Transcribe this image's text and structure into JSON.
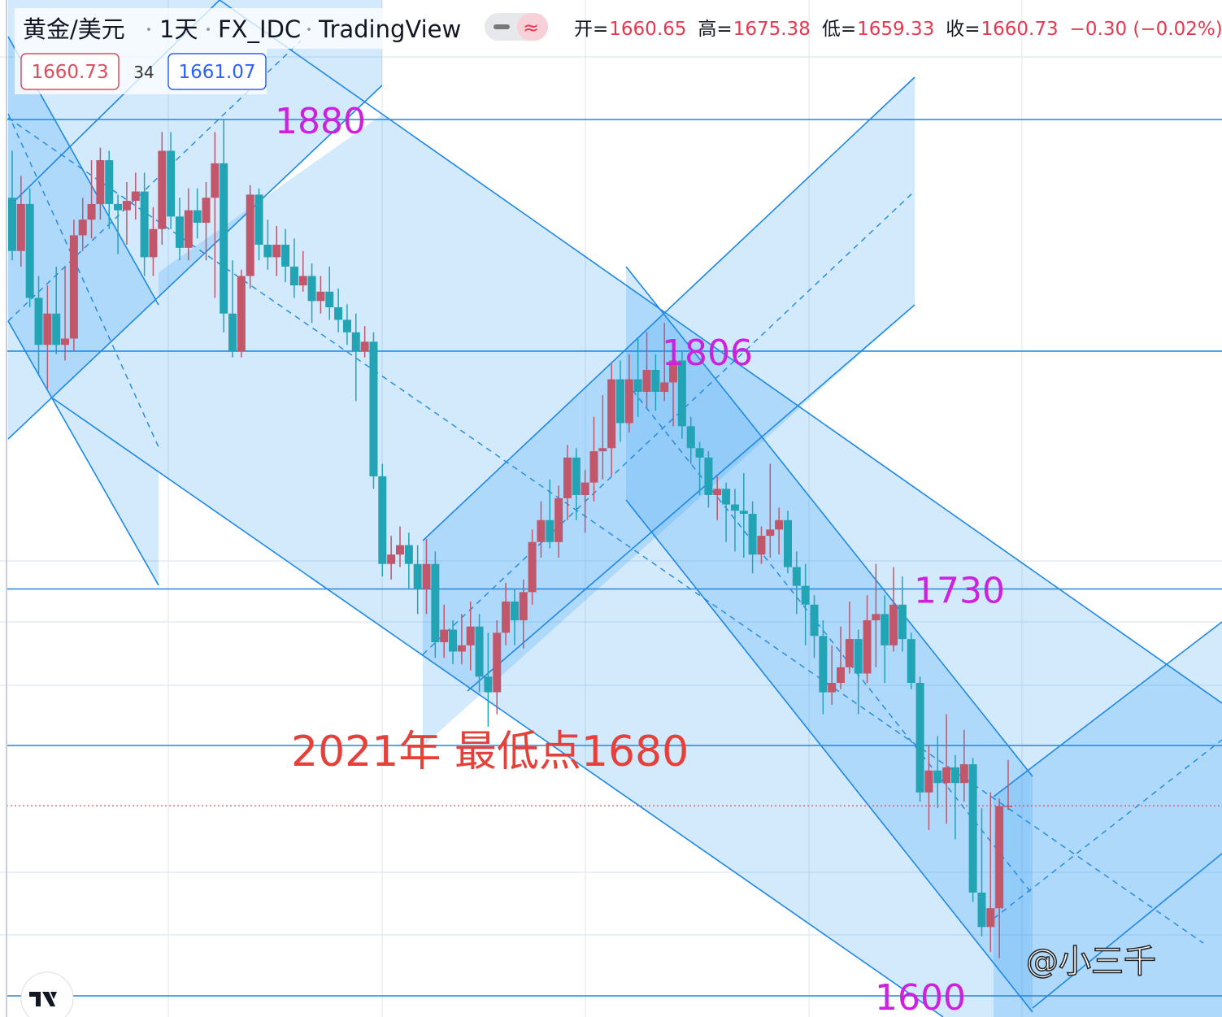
{
  "chart_data": {
    "type": "candlestick",
    "symbol": "黄金/美元",
    "interval": "1天",
    "exchange": "FX_IDC",
    "source": "TradingView",
    "ohlc_labels": [
      "开=",
      "高=",
      "低=",
      "收="
    ],
    "change": "−0.30 (−0.02%)",
    "bid": 1660.73,
    "spread": 34,
    "ask": 1661.07,
    "ylim": [
      1593.25,
      1918.18
    ],
    "levels": [
      1880,
      1806,
      1730,
      1680,
      1600
    ],
    "annotation": "2021年 最低点1680",
    "watermark": "@小三千",
    "up_color": "#c0576b",
    "down_color": "#22a4b5",
    "open": [
      1855,
      1838,
      1853,
      1823,
      1808,
      1818,
      1808,
      1810,
      1843,
      1848,
      1853,
      1867,
      1853,
      1851,
      1854,
      1857,
      1836,
      1845,
      1870,
      1849,
      1839,
      1851,
      1847,
      1855,
      1866,
      1818,
      1806,
      1830,
      1856,
      1840,
      1836,
      1840,
      1833,
      1827,
      1830,
      1822,
      1825,
      1820,
      1816,
      1812,
      1806,
      1809,
      1766,
      1738,
      1741,
      1744,
      1738,
      1730,
      1738,
      1713,
      1717,
      1710,
      1712,
      1718,
      1702,
      1697,
      1716,
      1726,
      1720,
      1729,
      1745,
      1752,
      1745,
      1759,
      1772,
      1760,
      1764,
      1774,
      1775,
      1797,
      1783,
      1797,
      1793,
      1800,
      1793,
      1796,
      1803,
      1782,
      1775,
      1772,
      1760,
      1762,
      1757,
      1755,
      1754,
      1741,
      1747,
      1749,
      1752,
      1737,
      1731,
      1725,
      1715,
      1697,
      1700,
      1705,
      1714,
      1703,
      1720,
      1722,
      1712,
      1725,
      1714,
      1700,
      1665,
      1672,
      1668,
      1673,
      1668,
      1674,
      1633,
      1622,
      1628,
      1660.65
    ],
    "high": [
      1870,
      1862,
      1858,
      1830,
      1827,
      1833,
      1833,
      1848,
      1855,
      1867,
      1871,
      1870,
      1856,
      1860,
      1863,
      1863,
      1852,
      1876,
      1876,
      1855,
      1858,
      1858,
      1860,
      1876,
      1880,
      1835,
      1832,
      1859,
      1858,
      1848,
      1846,
      1845,
      1842,
      1838,
      1834,
      1830,
      1833,
      1826,
      1821,
      1818,
      1814,
      1812,
      1770,
      1747,
      1750,
      1748,
      1744,
      1746,
      1742,
      1725,
      1720,
      1722,
      1726,
      1722,
      1716,
      1720,
      1732,
      1730,
      1733,
      1749,
      1758,
      1765,
      1763,
      1776,
      1775,
      1768,
      1785,
      1792,
      1802,
      1803,
      1805,
      1810,
      1812,
      1805,
      1815,
      1809,
      1806,
      1785,
      1777,
      1774,
      1766,
      1764,
      1762,
      1767,
      1758,
      1750,
      1770,
      1756,
      1755,
      1742,
      1738,
      1728,
      1720,
      1712,
      1718,
      1726,
      1717,
      1728,
      1738,
      1728,
      1737,
      1734,
      1716,
      1702,
      1680,
      1683,
      1690,
      1677,
      1685,
      1676,
      1660,
      1665,
      1663,
      1675.38
    ],
    "low": [
      1835,
      1833,
      1820,
      1798,
      1794,
      1805,
      1803,
      1806,
      1838,
      1842,
      1848,
      1845,
      1837,
      1840,
      1848,
      1830,
      1830,
      1840,
      1845,
      1835,
      1835,
      1842,
      1835,
      1823,
      1812,
      1804,
      1804,
      1826,
      1835,
      1832,
      1830,
      1828,
      1823,
      1825,
      1815,
      1818,
      1816,
      1812,
      1808,
      1790,
      1804,
      1762,
      1734,
      1733,
      1737,
      1730,
      1722,
      1722,
      1708,
      1708,
      1706,
      1706,
      1704,
      1697,
      1686,
      1690,
      1712,
      1712,
      1711,
      1725,
      1740,
      1743,
      1740,
      1752,
      1752,
      1748,
      1758,
      1765,
      1766,
      1777,
      1780,
      1785,
      1788,
      1787,
      1790,
      1782,
      1778,
      1770,
      1760,
      1756,
      1752,
      1745,
      1742,
      1740,
      1735,
      1738,
      1740,
      1741,
      1735,
      1722,
      1712,
      1708,
      1690,
      1693,
      1698,
      1703,
      1690,
      1700,
      1705,
      1700,
      1710,
      1710,
      1698,
      1662,
      1653,
      1660,
      1655,
      1650,
      1662,
      1630,
      1619,
      1614,
      1612,
      1659.33
    ],
    "close": [
      1838,
      1853,
      1823,
      1808,
      1818,
      1808,
      1810,
      1843,
      1848,
      1853,
      1867,
      1853,
      1851,
      1854,
      1857,
      1836,
      1845,
      1870,
      1849,
      1839,
      1851,
      1847,
      1855,
      1866,
      1818,
      1806,
      1830,
      1856,
      1840,
      1836,
      1840,
      1833,
      1827,
      1830,
      1822,
      1825,
      1820,
      1816,
      1812,
      1806,
      1809,
      1766,
      1738,
      1741,
      1744,
      1738,
      1730,
      1738,
      1713,
      1717,
      1710,
      1712,
      1718,
      1702,
      1697,
      1716,
      1726,
      1720,
      1729,
      1745,
      1752,
      1745,
      1759,
      1772,
      1760,
      1764,
      1774,
      1775,
      1797,
      1783,
      1797,
      1793,
      1800,
      1793,
      1796,
      1803,
      1782,
      1775,
      1772,
      1760,
      1762,
      1757,
      1755,
      1754,
      1741,
      1747,
      1749,
      1752,
      1737,
      1731,
      1725,
      1715,
      1697,
      1700,
      1705,
      1714,
      1703,
      1720,
      1722,
      1712,
      1725,
      1714,
      1700,
      1665,
      1672,
      1668,
      1673,
      1668,
      1674,
      1633,
      1622,
      1628,
      1660.65,
      1660.73
    ]
  }
}
